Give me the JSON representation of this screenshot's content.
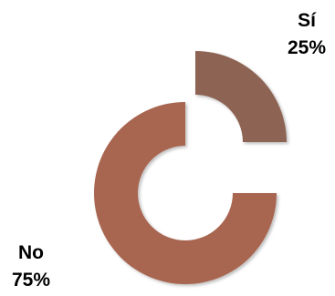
{
  "chart_data": {
    "type": "pie",
    "variant": "doughnut-exploded",
    "slices": [
      {
        "label": "Sí",
        "value": 25,
        "value_label": "25%",
        "color": "#8d6352"
      },
      {
        "label": "No",
        "value": 75,
        "value_label": "75%",
        "color": "#a8654f"
      }
    ],
    "legend": "none"
  }
}
